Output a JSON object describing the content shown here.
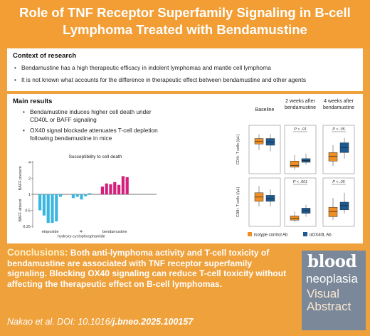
{
  "title": "Role of TNF Receptor Superfamily Signaling in B-cell Lymphoma Treated with Bendamustine",
  "context": {
    "heading": "Context of research",
    "bullets": [
      "Bendamustine has a high therapeutic efficacy in indolent lymphomas and mantle cell lymphoma",
      "It is not known what accounts for the difference in therapeutic effect between bendamustine and other agents"
    ]
  },
  "main_results": {
    "heading": "Main results",
    "bullets": [
      "Bendamustine induces higher cell death under CD40L or BAFF signaling",
      "OX40 signal blockade attenuates T-cell depletion following bendamustine in mice"
    ]
  },
  "colors": {
    "accent": "#f29e35",
    "cyan_bar": "#3bb6e0",
    "magenta_bar": "#d41f7d",
    "control": "#ee8e24",
    "treated": "#1b5b92",
    "logo_bg": "#7a8899"
  },
  "chart_data": [
    {
      "type": "bar",
      "title": "Susceptibility to cell death",
      "ylabel_top": "BAFF present",
      "ylabel_bottom": "BAFF absent",
      "yscale": "log",
      "yticks": [
        "4",
        "2",
        "1",
        "0.5",
        "0.25"
      ],
      "ylim": [
        0.25,
        4
      ],
      "groups": [
        {
          "label": "etoposide",
          "color": "#3bb6e0",
          "values": [
            0.5,
            0.4,
            0.29,
            0.29,
            0.31,
            0.9
          ]
        },
        {
          "label": "4-hydroxy-cyclophosphamide",
          "color": "#3bb6e0",
          "values": [
            0.85,
            0.9,
            0.8,
            0.92,
            1.05
          ]
        },
        {
          "label": "bendamustine",
          "color": "#d41f7d",
          "values": [
            1.4,
            1.6,
            1.55,
            1.7,
            1.5,
            2.2,
            2.1
          ]
        }
      ]
    },
    {
      "type": "box",
      "columns": [
        "Baseline",
        "2 weeks after bendamustine",
        "4 weeks after bendamustine"
      ],
      "rows": [
        "CD4+ T cells (/μL)",
        "CD8+ T cells (/μL)"
      ],
      "legend": [
        "isotype control Ab",
        "αOX40L Ab"
      ],
      "pvalues": [
        [
          "",
          "P < .01",
          "P < .05"
        ],
        [
          "",
          "P < .001",
          "P < .05"
        ]
      ],
      "boxes": [
        [
          [
            {
              "q1": 2200,
              "med": 2400,
              "q3": 2650,
              "lo": 1700,
              "hi": 3000
            },
            {
              "q1": 2100,
              "med": 2350,
              "q3": 2650,
              "lo": 1600,
              "hi": 3000
            }
          ],
          [
            {
              "q1": 300,
              "med": 450,
              "q3": 800,
              "lo": 100,
              "hi": 1300
            },
            {
              "q1": 700,
              "med": 850,
              "q3": 1000,
              "lo": 500,
              "hi": 1400
            }
          ],
          [
            {
              "q1": 800,
              "med": 1200,
              "q3": 1500,
              "lo": 400,
              "hi": 2100
            },
            {
              "q1": 1500,
              "med": 1900,
              "q3": 2300,
              "lo": 1000,
              "hi": 2700
            }
          ]
        ],
        [
          [
            {
              "q1": 1300,
              "med": 1550,
              "q3": 1800,
              "lo": 1000,
              "hi": 2200
            },
            {
              "q1": 1300,
              "med": 1450,
              "q3": 1650,
              "lo": 1000,
              "hi": 2000
            }
          ],
          [
            {
              "q1": 200,
              "med": 300,
              "q3": 450,
              "lo": 100,
              "hi": 700
            },
            {
              "q1": 600,
              "med": 750,
              "q3": 900,
              "lo": 400,
              "hi": 1100
            }
          ],
          [
            {
              "q1": 400,
              "med": 700,
              "q3": 950,
              "lo": 200,
              "hi": 1500
            },
            {
              "q1": 800,
              "med": 1050,
              "q3": 1250,
              "lo": 600,
              "hi": 1800
            }
          ]
        ]
      ]
    }
  ],
  "conclusion": {
    "label": "Conclusions:",
    "text": " Both anti-lymphoma activity and T-cell toxicity of bendamustine are associated with TNF receptor superfamily signaling. Blocking OX40 signaling can reduce T-cell toxicity without affecting the therapeutic effect on B-cell lymphomas."
  },
  "citation": {
    "prefix": "Nakao et al. DOI: 10.1016/",
    "bold": "j.bneo.2025.100157"
  },
  "logo": {
    "blood": "blood",
    "neoplasia": "neoplasia",
    "visual": "Visual",
    "abstract": "Abstract"
  }
}
